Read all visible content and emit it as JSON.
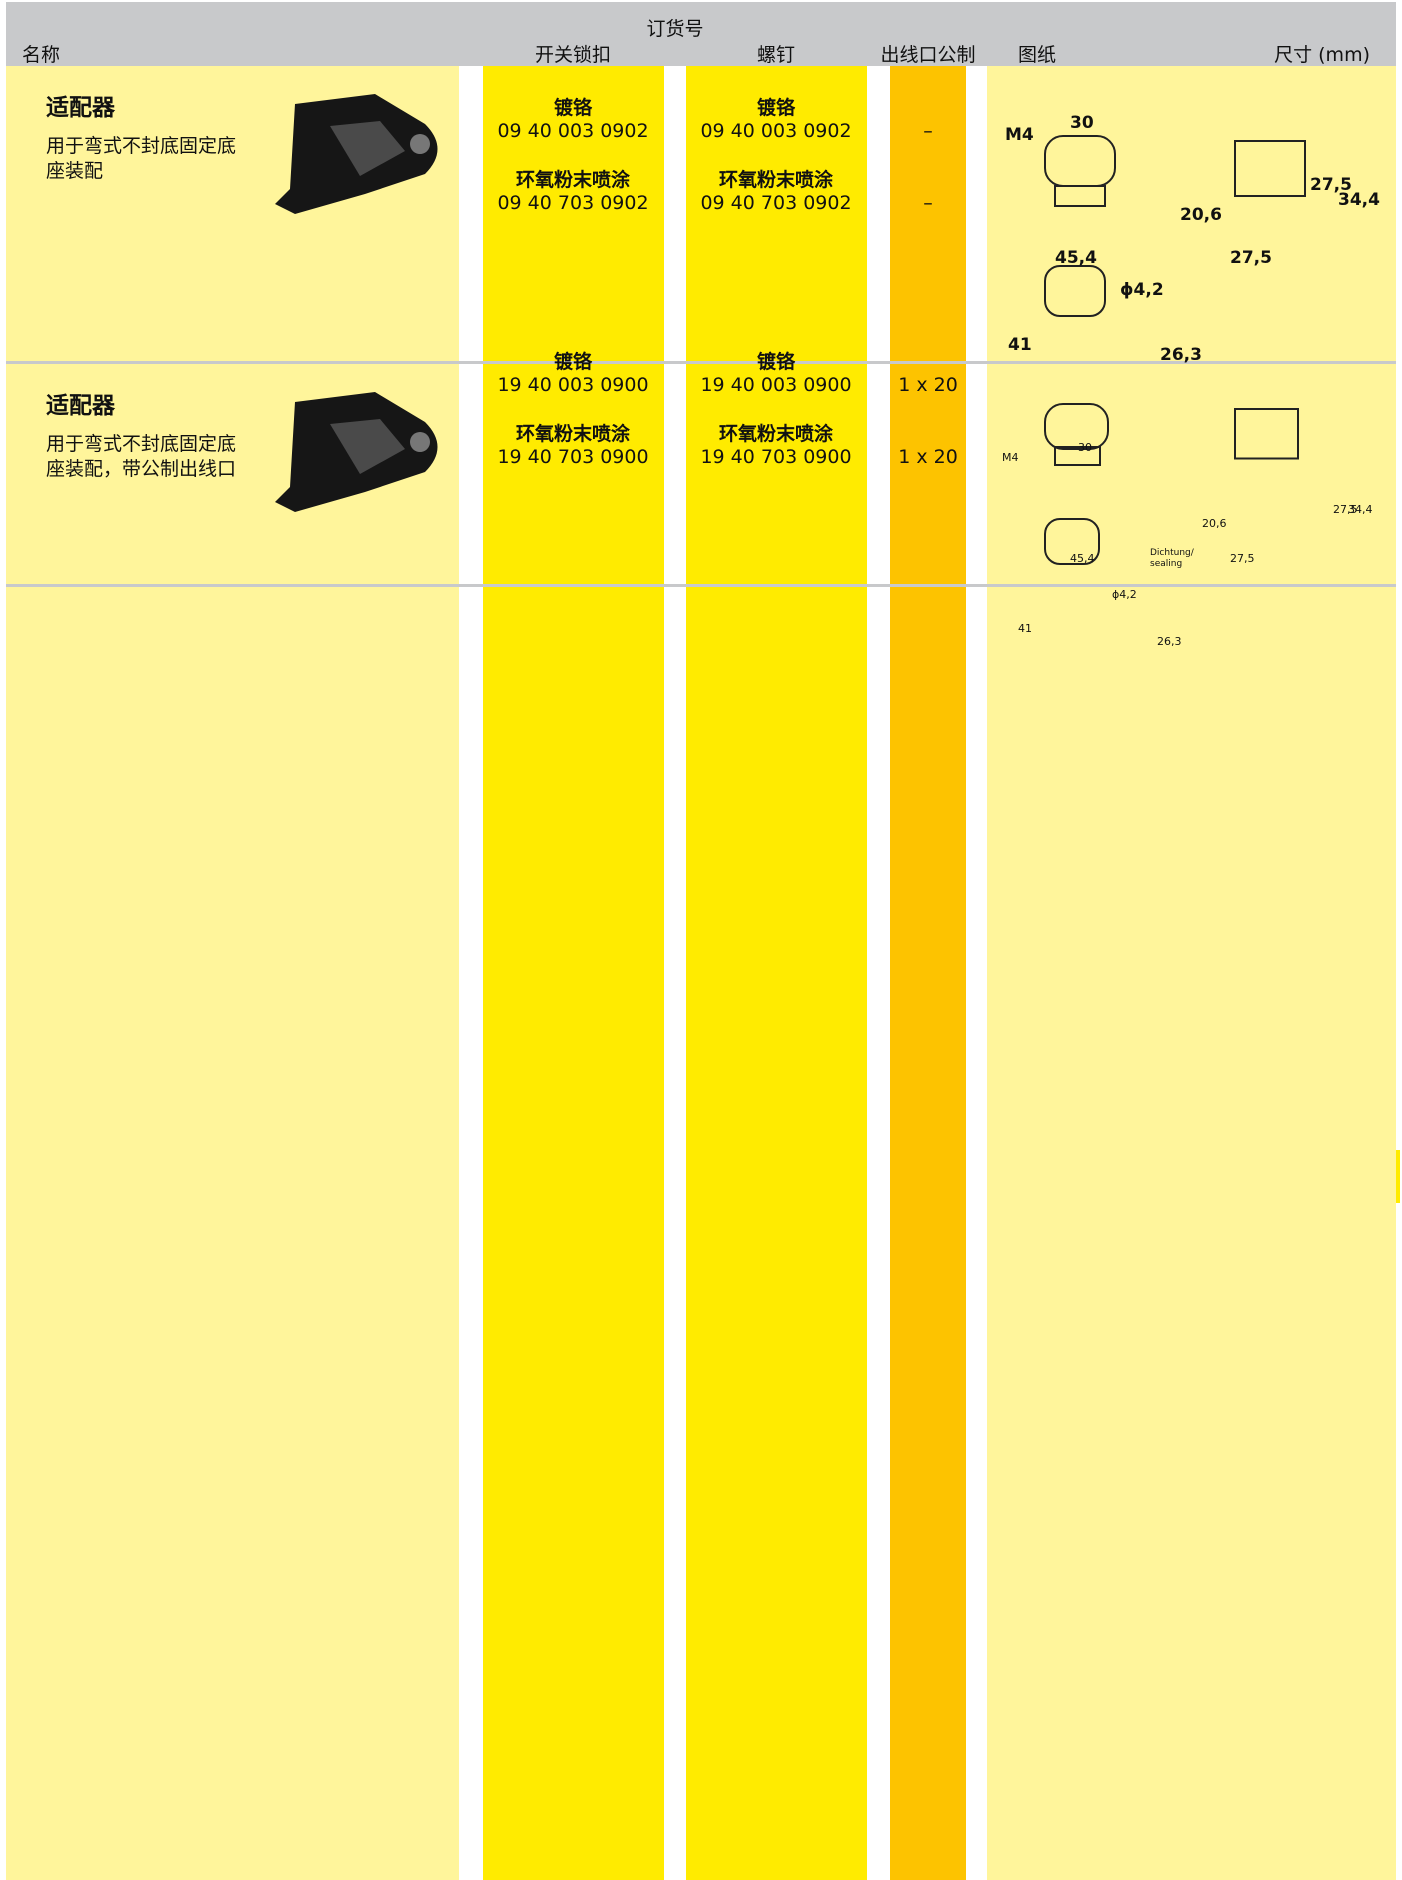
{
  "header": {
    "group": "订货号",
    "columns": [
      "名称",
      "开关锁扣",
      "螺钉",
      "出线口公制",
      "图纸",
      "尺寸 (mm)"
    ]
  },
  "rows": [
    {
      "title": "适配器",
      "description": "用于弯式不封底固定底座装配",
      "options": [
        {
          "finish": "镀铬",
          "latch": "09 40 003 0902",
          "screw": "09 40 003 0902",
          "outlet": "–"
        },
        {
          "finish": "环氧粉末喷涂",
          "latch": "09 40 703 0902",
          "screw": "09 40 703 0902",
          "outlet": "–"
        }
      ],
      "drawing_labels": [
        "M4",
        "30",
        "20,6",
        "27,5",
        "34,4",
        "45,4",
        "27,5",
        "ϕ4,2",
        "41",
        "26,3"
      ]
    },
    {
      "title": "适配器",
      "description": "用于弯式不封底固定底座装配，带公制出线口",
      "options": [
        {
          "finish": "镀铬",
          "latch": "19 40 003 0900",
          "screw": "19 40 003 0900",
          "outlet": "1 x 20"
        },
        {
          "finish": "环氧粉末喷涂",
          "latch": "19 40 703 0900",
          "screw": "19 40 703 0900",
          "outlet": "1 x 20"
        }
      ],
      "drawing_labels": [
        "M4",
        "30",
        "20,6",
        "27,5",
        "34,4",
        "45,4",
        "27,5",
        "Dichtung/",
        "sealing",
        "ϕ4,2",
        "41",
        "26,3"
      ]
    }
  ]
}
